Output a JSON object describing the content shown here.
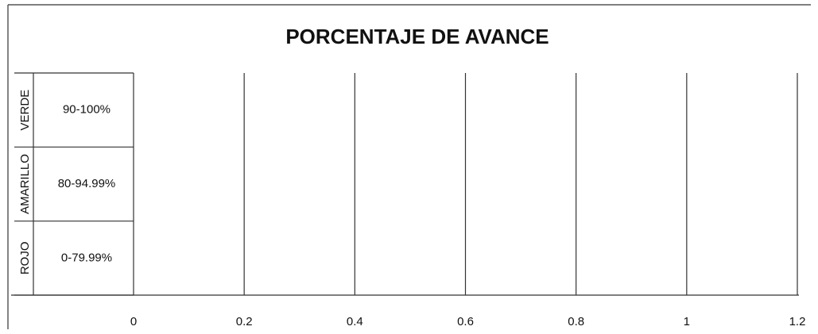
{
  "chart_data": {
    "type": "bar",
    "orientation": "horizontal",
    "title": "PORCENTAJE DE AVANCE",
    "categories": [
      "90-100%",
      "80-94.99%",
      "0-79.99%"
    ],
    "groups": [
      "VERDE",
      "AMARILLO",
      "ROJO"
    ],
    "xlim": [
      0,
      1.2
    ],
    "xticks": [
      0,
      0.2,
      0.4,
      0.6,
      0.8,
      1,
      1.2
    ],
    "grid": true
  }
}
